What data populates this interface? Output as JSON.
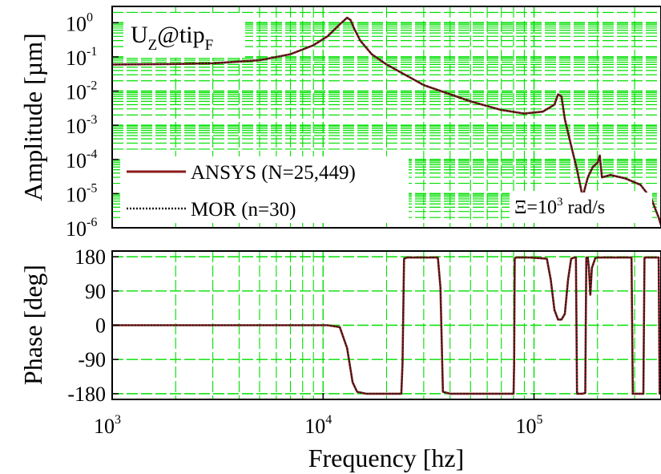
{
  "chart_data": [
    {
      "type": "line",
      "title": "U",
      "title_sub1": "Z",
      "title_mid": "@tip",
      "title_sub2": "F",
      "xlabel": "",
      "ylabel": "Amplitude [µm]",
      "x_scale": "log",
      "y_scale": "log",
      "xlim": [
        1000,
        400000
      ],
      "ylim": [
        1e-06,
        3
      ],
      "y_ticks": [
        1e-06,
        1e-05,
        0.0001,
        0.001,
        0.01,
        0.1,
        1
      ],
      "y_tick_labels": [
        {
          "base": "10",
          "exp": "-6"
        },
        {
          "base": "10",
          "exp": "-5"
        },
        {
          "base": "10",
          "exp": "-4"
        },
        {
          "base": "10",
          "exp": "-3"
        },
        {
          "base": "10",
          "exp": "-2"
        },
        {
          "base": "10",
          "exp": "-1"
        },
        {
          "base": "10",
          "exp": "0"
        }
      ],
      "grid": true,
      "grid_color": "#00e000",
      "legend_position": "bottom-left",
      "annotation": {
        "prefix": "Ξ=10",
        "exp": "3",
        "suffix": " rad/s"
      },
      "series": [
        {
          "name": "ANSYS (N=25,449)",
          "style": "solid",
          "color": "#8b1a1a",
          "x": [
            1000,
            2000,
            3000,
            5000,
            7000,
            9000,
            10500,
            12000,
            13000,
            13500,
            14000,
            15000,
            17000,
            20000,
            30000,
            50000,
            70000,
            90000,
            110000,
            125000,
            130000,
            135000,
            140000,
            150000,
            160000,
            170000,
            180000,
            190000,
            200000,
            205000,
            210000,
            230000,
            270000,
            320000,
            360000,
            390000,
            400000
          ],
          "y": [
            0.06,
            0.062,
            0.065,
            0.08,
            0.12,
            0.22,
            0.4,
            0.9,
            1.4,
            1.2,
            0.7,
            0.3,
            0.12,
            0.06,
            0.015,
            0.005,
            0.0028,
            0.0022,
            0.0025,
            0.004,
            0.008,
            0.007,
            0.0015,
            0.00025,
            5e-05,
            8e-06,
            3e-05,
            6e-05,
            8e-05,
            0.00013,
            3e-05,
            3.5e-05,
            2.8e-05,
            1.8e-05,
            7e-06,
            2e-06,
            1.2e-06
          ]
        },
        {
          "name": "MOR (n=30)",
          "style": "dotted",
          "color": "#1a1a1a",
          "x": [
            1000,
            2000,
            3000,
            5000,
            7000,
            9000,
            10500,
            12000,
            13000,
            13500,
            14000,
            15000,
            17000,
            20000,
            30000,
            50000,
            70000,
            90000,
            110000,
            125000,
            130000,
            135000,
            140000,
            150000,
            160000,
            170000,
            180000,
            190000,
            200000,
            205000,
            210000,
            230000,
            270000,
            320000,
            360000,
            390000,
            400000
          ],
          "y": [
            0.06,
            0.062,
            0.065,
            0.08,
            0.12,
            0.22,
            0.4,
            0.9,
            1.4,
            1.2,
            0.7,
            0.3,
            0.12,
            0.06,
            0.015,
            0.005,
            0.0028,
            0.0022,
            0.0025,
            0.004,
            0.008,
            0.007,
            0.0015,
            0.00025,
            5e-05,
            8e-06,
            3e-05,
            6e-05,
            8e-05,
            0.00013,
            3e-05,
            3.5e-05,
            2.8e-05,
            1.8e-05,
            7e-06,
            2e-06,
            1.2e-06
          ]
        }
      ]
    },
    {
      "type": "line",
      "title": "",
      "xlabel": "Frequency [hz]",
      "ylabel": "Phase [deg]",
      "x_scale": "log",
      "y_scale": "linear",
      "xlim": [
        1000,
        400000
      ],
      "ylim": [
        -195,
        195
      ],
      "y_ticks": [
        -180,
        -90,
        0,
        90,
        180
      ],
      "y_tick_labels": [
        "-180",
        "-90",
        "0",
        "90",
        "180"
      ],
      "x_ticks": [
        1000,
        10000,
        100000
      ],
      "x_tick_labels": [
        {
          "base": "10",
          "exp": "3"
        },
        {
          "base": "10",
          "exp": "4"
        },
        {
          "base": "10",
          "exp": "5"
        }
      ],
      "grid": true,
      "grid_color": "#00e000",
      "series": [
        {
          "name": "ANSYS (N=25,449)",
          "style": "solid",
          "color": "#8b1a1a",
          "x": [
            1000,
            10500,
            12000,
            13000,
            13800,
            14500,
            16000,
            20000,
            23500,
            23800,
            24200,
            25000,
            35000,
            36000,
            37000,
            40000,
            60000,
            80000,
            80500,
            81000,
            82000,
            95000,
            115000,
            120000,
            125000,
            130000,
            135000,
            140000,
            145000,
            150000,
            155000,
            158000,
            159000,
            160000,
            165000,
            170000,
            175000,
            176000,
            177000,
            180000,
            182000,
            185000,
            188000,
            195000,
            200000,
            230000,
            270000,
            290000,
            292000,
            294000,
            300000,
            310000,
            330000,
            332000,
            334000,
            340000,
            360000,
            380000,
            390000,
            392000,
            394000,
            400000
          ],
          "y": [
            0,
            0,
            -5,
            -60,
            -150,
            -175,
            -180,
            -180,
            -180,
            -100,
            175,
            178,
            178,
            100,
            -175,
            -180,
            -180,
            -180,
            -100,
            175,
            178,
            178,
            175,
            120,
            40,
            15,
            15,
            30,
            120,
            175,
            178,
            178,
            0,
            -180,
            -180,
            -180,
            -178,
            0,
            178,
            178,
            150,
            80,
            150,
            176,
            178,
            178,
            178,
            178,
            0,
            -180,
            -180,
            -180,
            -180,
            0,
            178,
            178,
            178,
            178,
            178,
            0,
            -180,
            -180
          ]
        },
        {
          "name": "MOR (n=30)",
          "style": "dotted",
          "color": "#1a1a1a",
          "x": [
            1000,
            10500,
            12000,
            13000,
            13800,
            14500,
            16000,
            20000,
            23500,
            23800,
            24200,
            25000,
            35000,
            36000,
            37000,
            40000,
            60000,
            80000,
            80500,
            81000,
            82000,
            95000,
            115000,
            120000,
            125000,
            130000,
            135000,
            140000,
            145000,
            150000,
            155000,
            158000,
            159000,
            160000,
            165000,
            170000,
            175000,
            176000,
            177000,
            180000,
            182000,
            185000,
            188000,
            195000,
            200000,
            230000,
            270000,
            290000,
            292000,
            294000,
            300000,
            310000,
            330000,
            332000,
            334000,
            340000,
            360000,
            380000,
            390000,
            392000,
            394000,
            400000
          ],
          "y": [
            0,
            0,
            -5,
            -60,
            -150,
            -175,
            -180,
            -180,
            -180,
            -100,
            175,
            178,
            178,
            100,
            -175,
            -180,
            -180,
            -180,
            -100,
            175,
            178,
            178,
            175,
            120,
            40,
            15,
            15,
            30,
            120,
            175,
            178,
            178,
            0,
            -180,
            -180,
            -180,
            -178,
            0,
            178,
            178,
            150,
            80,
            150,
            176,
            178,
            178,
            178,
            178,
            0,
            -180,
            -180,
            -180,
            -180,
            0,
            178,
            178,
            178,
            178,
            178,
            0,
            -180,
            -180
          ]
        }
      ]
    }
  ]
}
